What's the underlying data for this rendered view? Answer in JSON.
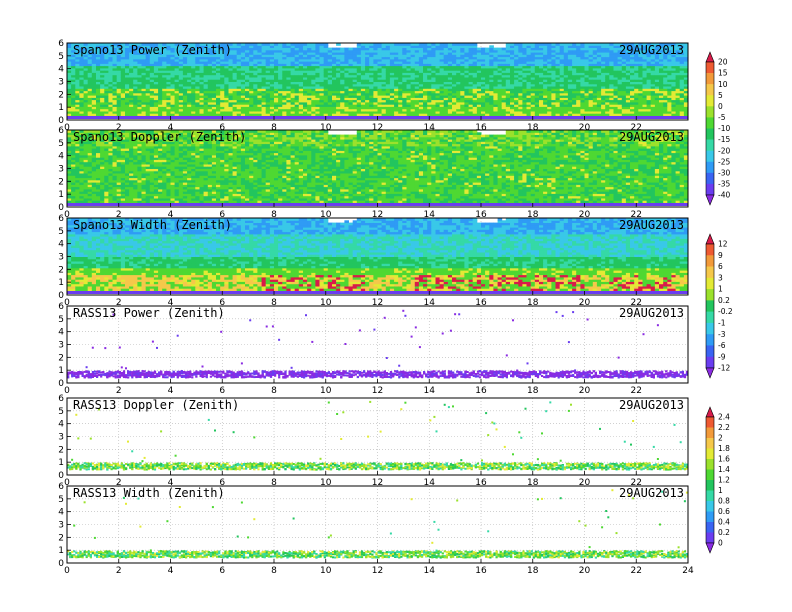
{
  "colors": {
    "scale_a": [
      "#8a2be2",
      "#6a3df0",
      "#3a64f2",
      "#2f9bf5",
      "#39c8e8",
      "#35d9a6",
      "#22c55e",
      "#4ed832",
      "#9be12c",
      "#e3ea35",
      "#f5c84a",
      "#f29a3a",
      "#ee5a32",
      "#d81b4a"
    ],
    "scale_c": [
      "#8a2be2",
      "#6a3df0",
      "#3a64f2",
      "#2f9bf5",
      "#39c8e8",
      "#35d9a6",
      "#22c55e",
      "#4ed832",
      "#9be12c",
      "#e3ea35",
      "#f5c84a",
      "#f29a3a",
      "#ee5a32",
      "#d81b4a"
    ],
    "rass_power": "#8a2be2"
  },
  "chart_data": [
    {
      "type": "heatmap",
      "title": "Spano13 Power (Zenith)",
      "date": "29AUG2013",
      "x": {
        "range": [
          0,
          24
        ],
        "ticks": [
          "0",
          "2",
          "4",
          "6",
          "8",
          "10",
          "12",
          "14",
          "16",
          "18",
          "20",
          "22"
        ]
      },
      "y": {
        "range": [
          0,
          6
        ],
        "ticks": [
          "0",
          "1",
          "2",
          "3",
          "4",
          "5",
          "6"
        ]
      },
      "profile": {
        "heights": [
          0,
          0.5,
          1,
          1.5,
          2,
          2.5,
          3,
          3.5,
          4,
          4.5,
          5,
          5.5,
          6
        ],
        "dominant_value": [
          -25,
          -15,
          -10,
          -12,
          -15,
          -15,
          -18,
          -20,
          -20,
          -22,
          -25,
          -28,
          -30
        ]
      },
      "colorbar": "scale_a"
    },
    {
      "type": "heatmap",
      "title": "Spano13 Doppler (Zenith)",
      "date": "29AUG2013",
      "x": {
        "range": [
          0,
          24
        ],
        "ticks": [
          "0",
          "2",
          "4",
          "6",
          "8",
          "10",
          "12",
          "14",
          "16",
          "18",
          "20",
          "22"
        ]
      },
      "y": {
        "range": [
          0,
          6
        ],
        "ticks": [
          "0",
          "1",
          "2",
          "3",
          "4",
          "5",
          "6"
        ]
      },
      "profile": {
        "heights": [
          0,
          1,
          2,
          3,
          4,
          5,
          6
        ],
        "dominant_value": [
          -15,
          -15,
          -15,
          -15,
          -15,
          -12,
          -15
        ]
      },
      "colorbar": "scale_a"
    },
    {
      "type": "heatmap",
      "title": "Spano13 Width (Zenith)",
      "date": "29AUG2013",
      "x": {
        "range": [
          0,
          24
        ],
        "ticks": [
          "0",
          "2",
          "4",
          "6",
          "8",
          "10",
          "12",
          "14",
          "16",
          "18",
          "20",
          "22"
        ]
      },
      "y": {
        "range": [
          0,
          6
        ],
        "ticks": [
          "0",
          "1",
          "2",
          "3",
          "4",
          "5",
          "6"
        ]
      },
      "profile": {
        "heights": [
          0,
          0.5,
          1,
          1.5,
          2,
          3,
          4,
          5,
          6
        ],
        "dominant_value": [
          -1,
          3,
          9,
          3,
          0.2,
          -0.2,
          -1,
          -3,
          -6
        ]
      },
      "colorbar": "scale_b"
    },
    {
      "type": "scatter",
      "title": "RASS13 Power (Zenith)",
      "date": "29AUG2013",
      "x": {
        "range": [
          0,
          24
        ],
        "ticks": [
          "0",
          "2",
          "4",
          "6",
          "8",
          "10",
          "12",
          "14",
          "16",
          "18",
          "20",
          "22"
        ]
      },
      "y": {
        "range": [
          0,
          6
        ],
        "ticks": [
          "0",
          "1",
          "2",
          "3",
          "4",
          "5",
          "6"
        ]
      },
      "band": {
        "height_range": [
          0.5,
          1.0
        ],
        "dominant_value": -12
      },
      "colorbar": "scale_b"
    },
    {
      "type": "scatter",
      "title": "RASS13 Doppler (Zenith)",
      "date": "29AUG2013",
      "x": {
        "range": [
          0,
          24
        ],
        "ticks": [
          "0",
          "2",
          "4",
          "6",
          "8",
          "10",
          "12",
          "14",
          "16",
          "18",
          "20",
          "22"
        ]
      },
      "y": {
        "range": [
          0,
          6
        ],
        "ticks": [
          "0",
          "1",
          "2",
          "3",
          "4",
          "5",
          "6"
        ]
      },
      "band": {
        "height_range": [
          0.5,
          1.0
        ],
        "dominant_value": 1.0
      },
      "colorbar": "scale_c"
    },
    {
      "type": "scatter",
      "title": "RASS13 Width (Zenith)",
      "date": "29AUG2013",
      "x": {
        "range": [
          0,
          24
        ],
        "ticks": [
          "0",
          "2",
          "4",
          "6",
          "8",
          "10",
          "12",
          "14",
          "16",
          "18",
          "20",
          "22",
          "24"
        ]
      },
      "y": {
        "range": [
          0,
          6
        ],
        "ticks": [
          "0",
          "1",
          "2",
          "3",
          "4",
          "5",
          "6"
        ]
      },
      "band": {
        "height_range": [
          0.5,
          1.0
        ],
        "dominant_value": 0.8
      },
      "colorbar": "scale_c"
    }
  ],
  "colorbars": {
    "scale_a": {
      "labels": [
        "20",
        "15",
        "10",
        "5",
        "0",
        "-5",
        "-10",
        "-15",
        "-20",
        "-25",
        "-30",
        "-35",
        "-40"
      ]
    },
    "scale_b": {
      "labels": [
        "12",
        "9",
        "6",
        "3",
        "1",
        "0.2",
        "-0.2",
        "-1",
        "-3",
        "-6",
        "-9",
        "-12"
      ]
    },
    "scale_c": {
      "labels": [
        "2.4",
        "2.2",
        "2",
        "1.8",
        "1.6",
        "1.4",
        "1.2",
        "1",
        "0.8",
        "0.6",
        "0.4",
        "0.2",
        "0"
      ]
    }
  }
}
